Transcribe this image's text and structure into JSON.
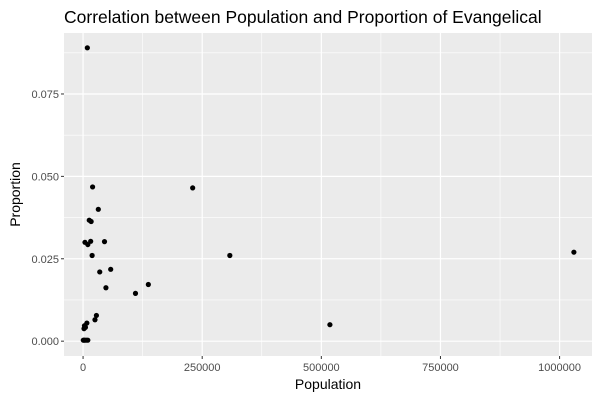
{
  "chart_data": {
    "type": "scatter",
    "title": "Correlation between Population and Proportion of Evangelical",
    "xlabel": "Population",
    "ylabel": "Proportion",
    "xlim": [
      -40000,
      1068000
    ],
    "ylim": [
      -0.0045,
      0.0935
    ],
    "x_ticks": [
      0,
      250000,
      500000,
      750000,
      1000000
    ],
    "x_tick_labels": [
      "0",
      "250000",
      "500000",
      "750000",
      "1000000"
    ],
    "y_ticks": [
      0.0,
      0.025,
      0.05,
      0.075
    ],
    "y_tick_labels": [
      "0.000",
      "0.025",
      "0.050",
      "0.075"
    ],
    "grid": true,
    "panel_background": "#ebebeb",
    "grid_color": "#ffffff",
    "point_color": "#000000",
    "points": [
      {
        "x": 9000,
        "y": 0.089
      },
      {
        "x": 20000,
        "y": 0.0468
      },
      {
        "x": 230000,
        "y": 0.0465
      },
      {
        "x": 32000,
        "y": 0.04
      },
      {
        "x": 13000,
        "y": 0.0367
      },
      {
        "x": 17000,
        "y": 0.0363
      },
      {
        "x": 4000,
        "y": 0.03
      },
      {
        "x": 10000,
        "y": 0.0293
      },
      {
        "x": 16000,
        "y": 0.0303
      },
      {
        "x": 45000,
        "y": 0.0302
      },
      {
        "x": 19000,
        "y": 0.026
      },
      {
        "x": 308000,
        "y": 0.026
      },
      {
        "x": 1030000,
        "y": 0.027
      },
      {
        "x": 58000,
        "y": 0.0218
      },
      {
        "x": 35000,
        "y": 0.021
      },
      {
        "x": 137000,
        "y": 0.0172
      },
      {
        "x": 48000,
        "y": 0.0162
      },
      {
        "x": 110000,
        "y": 0.0145
      },
      {
        "x": 28000,
        "y": 0.0078
      },
      {
        "x": 25000,
        "y": 0.0065
      },
      {
        "x": 518000,
        "y": 0.005
      },
      {
        "x": 8000,
        "y": 0.0055
      },
      {
        "x": 3000,
        "y": 0.0047
      },
      {
        "x": 5000,
        "y": 0.0042
      },
      {
        "x": 2000,
        "y": 0.0038
      },
      {
        "x": 500,
        "y": 0.0003
      },
      {
        "x": 2000,
        "y": 0.0003
      },
      {
        "x": 4000,
        "y": 0.0003
      },
      {
        "x": 7000,
        "y": 0.0003
      },
      {
        "x": 10000,
        "y": 0.0003
      }
    ]
  }
}
